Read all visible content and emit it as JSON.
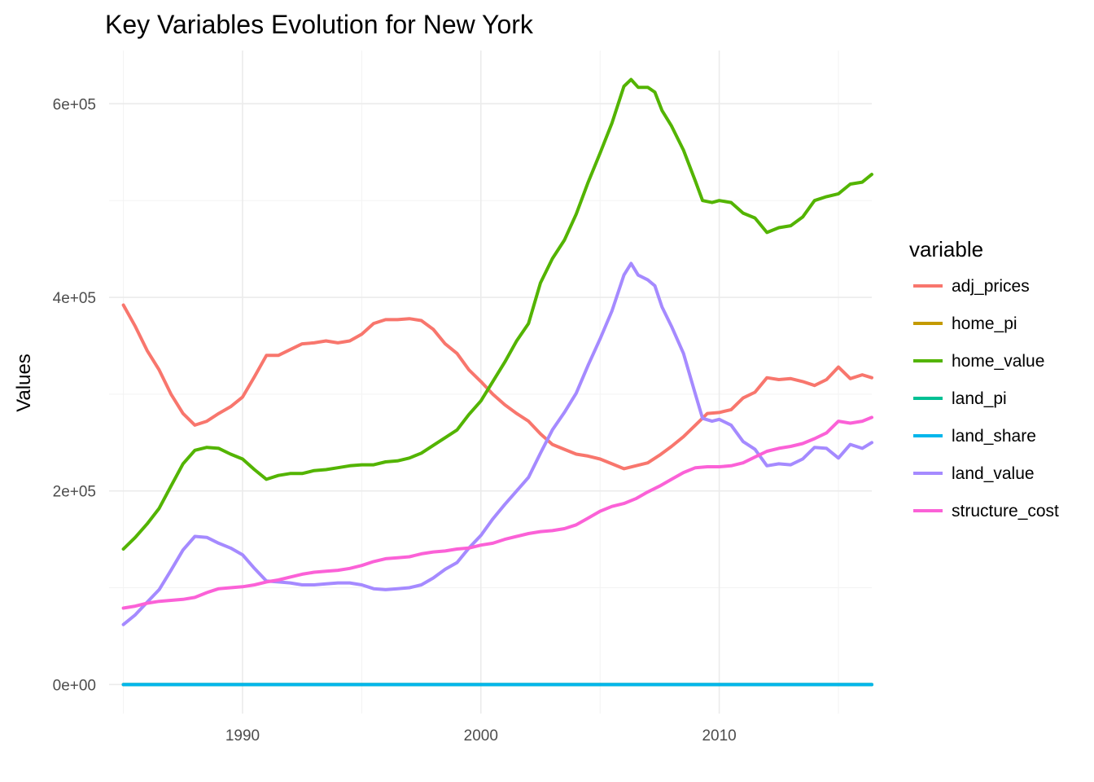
{
  "chart_data": {
    "type": "line",
    "title": "Key Variables Evolution for New York",
    "xlabel": "",
    "ylabel": "Values",
    "xlim": [
      1984.4,
      2016.4
    ],
    "ylim": [
      -30000,
      655000
    ],
    "x_ticks": [
      1990,
      2000,
      2010
    ],
    "x_tick_labels": [
      "1990",
      "2000",
      "2010"
    ],
    "y_ticks": [
      0,
      200000,
      400000,
      600000
    ],
    "y_tick_labels": [
      "0e+00",
      "2e+05",
      "4e+05",
      "6e+05"
    ],
    "grid": true,
    "legend": {
      "title": "variable",
      "position": "right"
    },
    "series": [
      {
        "name": "adj_prices",
        "color": "#F8766D",
        "points": [
          [
            1985,
            392000
          ],
          [
            1985.5,
            370000
          ],
          [
            1986,
            345000
          ],
          [
            1986.5,
            325000
          ],
          [
            1987,
            300000
          ],
          [
            1987.5,
            280000
          ],
          [
            1988,
            268000
          ],
          [
            1988.5,
            272000
          ],
          [
            1989,
            280000
          ],
          [
            1989.5,
            287000
          ],
          [
            1990,
            297000
          ],
          [
            1990.5,
            318000
          ],
          [
            1991,
            340000
          ],
          [
            1991.5,
            340000
          ],
          [
            1992,
            346000
          ],
          [
            1992.5,
            352000
          ],
          [
            1993,
            353000
          ],
          [
            1993.5,
            355000
          ],
          [
            1994,
            353000
          ],
          [
            1994.5,
            355000
          ],
          [
            1995,
            362000
          ],
          [
            1995.5,
            373000
          ],
          [
            1996,
            377000
          ],
          [
            1996.5,
            377000
          ],
          [
            1997,
            378000
          ],
          [
            1997.5,
            376000
          ],
          [
            1998,
            367000
          ],
          [
            1998.5,
            352000
          ],
          [
            1999,
            342000
          ],
          [
            1999.5,
            325000
          ],
          [
            2000,
            313000
          ],
          [
            2000.5,
            300000
          ],
          [
            2001,
            289000
          ],
          [
            2001.5,
            280000
          ],
          [
            2002,
            272000
          ],
          [
            2002.5,
            259000
          ],
          [
            2003,
            248000
          ],
          [
            2003.5,
            243000
          ],
          [
            2004,
            238000
          ],
          [
            2004.5,
            236000
          ],
          [
            2005,
            233000
          ],
          [
            2005.5,
            228000
          ],
          [
            2006,
            223000
          ],
          [
            2006.5,
            226000
          ],
          [
            2007,
            229000
          ],
          [
            2007.5,
            237000
          ],
          [
            2008,
            246000
          ],
          [
            2008.5,
            256000
          ],
          [
            2009,
            268000
          ],
          [
            2009.5,
            280000
          ],
          [
            2010,
            281000
          ],
          [
            2010.5,
            284000
          ],
          [
            2011,
            296000
          ],
          [
            2011.5,
            302000
          ],
          [
            2012,
            317000
          ],
          [
            2012.5,
            315000
          ],
          [
            2013,
            316000
          ],
          [
            2013.5,
            313000
          ],
          [
            2014,
            309000
          ],
          [
            2014.5,
            315000
          ],
          [
            2015,
            328000
          ],
          [
            2015.5,
            316000
          ],
          [
            2016,
            320000
          ],
          [
            2016.4,
            317000
          ]
        ]
      },
      {
        "name": "home_pi",
        "color": "#C49A00",
        "points": [
          [
            1985,
            0
          ],
          [
            2016.4,
            0
          ]
        ]
      },
      {
        "name": "home_value",
        "color": "#53B400",
        "points": [
          [
            1985,
            140000
          ],
          [
            1985.5,
            152000
          ],
          [
            1986,
            166000
          ],
          [
            1986.5,
            182000
          ],
          [
            1987,
            205000
          ],
          [
            1987.5,
            228000
          ],
          [
            1988,
            242000
          ],
          [
            1988.5,
            245000
          ],
          [
            1989,
            244000
          ],
          [
            1989.5,
            238000
          ],
          [
            1990,
            233000
          ],
          [
            1990.5,
            222000
          ],
          [
            1991,
            212000
          ],
          [
            1991.5,
            216000
          ],
          [
            1992,
            218000
          ],
          [
            1992.5,
            218000
          ],
          [
            1993,
            221000
          ],
          [
            1993.5,
            222000
          ],
          [
            1994,
            224000
          ],
          [
            1994.5,
            226000
          ],
          [
            1995,
            227000
          ],
          [
            1995.5,
            227000
          ],
          [
            1996,
            230000
          ],
          [
            1996.5,
            231000
          ],
          [
            1997,
            234000
          ],
          [
            1997.5,
            239000
          ],
          [
            1998,
            247000
          ],
          [
            1998.5,
            255000
          ],
          [
            1999,
            263000
          ],
          [
            1999.5,
            279000
          ],
          [
            2000,
            293000
          ],
          [
            2000.5,
            313000
          ],
          [
            2001,
            333000
          ],
          [
            2001.5,
            355000
          ],
          [
            2002,
            373000
          ],
          [
            2002.5,
            415000
          ],
          [
            2003,
            440000
          ],
          [
            2003.5,
            459000
          ],
          [
            2004,
            486000
          ],
          [
            2004.5,
            519000
          ],
          [
            2005,
            549000
          ],
          [
            2005.5,
            580000
          ],
          [
            2006,
            618000
          ],
          [
            2006.3,
            625000
          ],
          [
            2006.6,
            617000
          ],
          [
            2007,
            617000
          ],
          [
            2007.3,
            612000
          ],
          [
            2007.6,
            593000
          ],
          [
            2008,
            577000
          ],
          [
            2008.5,
            552000
          ],
          [
            2009,
            520000
          ],
          [
            2009.3,
            500000
          ],
          [
            2009.7,
            498000
          ],
          [
            2010,
            500000
          ],
          [
            2010.5,
            498000
          ],
          [
            2011,
            487000
          ],
          [
            2011.5,
            482000
          ],
          [
            2012,
            467000
          ],
          [
            2012.5,
            472000
          ],
          [
            2013,
            474000
          ],
          [
            2013.5,
            483000
          ],
          [
            2014,
            500000
          ],
          [
            2014.5,
            504000
          ],
          [
            2015,
            507000
          ],
          [
            2015.5,
            517000
          ],
          [
            2016,
            519000
          ],
          [
            2016.4,
            527000
          ]
        ]
      },
      {
        "name": "land_pi",
        "color": "#00C094",
        "points": [
          [
            1985,
            0
          ],
          [
            2016.4,
            0
          ]
        ]
      },
      {
        "name": "land_share",
        "color": "#00B6EB",
        "points": [
          [
            1985,
            0
          ],
          [
            2016.4,
            0
          ]
        ]
      },
      {
        "name": "land_value",
        "color": "#A58AFF",
        "points": [
          [
            1985,
            62000
          ],
          [
            1985.5,
            72000
          ],
          [
            1986,
            85000
          ],
          [
            1986.5,
            98000
          ],
          [
            1987,
            118000
          ],
          [
            1987.5,
            139000
          ],
          [
            1988,
            153000
          ],
          [
            1988.5,
            152000
          ],
          [
            1989,
            146000
          ],
          [
            1989.5,
            141000
          ],
          [
            1990,
            134000
          ],
          [
            1990.5,
            120000
          ],
          [
            1991,
            107000
          ],
          [
            1991.5,
            106000
          ],
          [
            1992,
            105000
          ],
          [
            1992.5,
            103000
          ],
          [
            1993,
            103000
          ],
          [
            1993.5,
            104000
          ],
          [
            1994,
            105000
          ],
          [
            1994.5,
            105000
          ],
          [
            1995,
            103000
          ],
          [
            1995.5,
            99000
          ],
          [
            1996,
            98000
          ],
          [
            1996.5,
            99000
          ],
          [
            1997,
            100000
          ],
          [
            1997.5,
            103000
          ],
          [
            1998,
            110000
          ],
          [
            1998.5,
            119000
          ],
          [
            1999,
            126000
          ],
          [
            1999.5,
            141000
          ],
          [
            2000,
            154000
          ],
          [
            2000.5,
            171000
          ],
          [
            2001,
            186000
          ],
          [
            2001.5,
            200000
          ],
          [
            2002,
            214000
          ],
          [
            2002.5,
            239000
          ],
          [
            2003,
            263000
          ],
          [
            2003.5,
            281000
          ],
          [
            2004,
            301000
          ],
          [
            2004.5,
            330000
          ],
          [
            2005,
            357000
          ],
          [
            2005.5,
            386000
          ],
          [
            2006,
            423000
          ],
          [
            2006.3,
            435000
          ],
          [
            2006.6,
            423000
          ],
          [
            2007,
            418000
          ],
          [
            2007.3,
            412000
          ],
          [
            2007.6,
            390000
          ],
          [
            2008,
            370000
          ],
          [
            2008.5,
            342000
          ],
          [
            2009,
            300000
          ],
          [
            2009.3,
            275000
          ],
          [
            2009.7,
            272000
          ],
          [
            2010,
            274000
          ],
          [
            2010.5,
            268000
          ],
          [
            2011,
            251000
          ],
          [
            2011.5,
            243000
          ],
          [
            2012,
            226000
          ],
          [
            2012.5,
            228000
          ],
          [
            2013,
            227000
          ],
          [
            2013.5,
            233000
          ],
          [
            2014,
            245000
          ],
          [
            2014.5,
            244000
          ],
          [
            2015,
            234000
          ],
          [
            2015.5,
            248000
          ],
          [
            2016,
            244000
          ],
          [
            2016.4,
            250000
          ]
        ]
      },
      {
        "name": "structure_cost",
        "color": "#FB61D7",
        "points": [
          [
            1985,
            79000
          ],
          [
            1985.5,
            81000
          ],
          [
            1986,
            84000
          ],
          [
            1986.5,
            86000
          ],
          [
            1987,
            87000
          ],
          [
            1987.5,
            88000
          ],
          [
            1988,
            90000
          ],
          [
            1988.5,
            95000
          ],
          [
            1989,
            99000
          ],
          [
            1989.5,
            100000
          ],
          [
            1990,
            101000
          ],
          [
            1990.5,
            103000
          ],
          [
            1991,
            106000
          ],
          [
            1991.5,
            108000
          ],
          [
            1992,
            111000
          ],
          [
            1992.5,
            114000
          ],
          [
            1993,
            116000
          ],
          [
            1993.5,
            117000
          ],
          [
            1994,
            118000
          ],
          [
            1994.5,
            120000
          ],
          [
            1995,
            123000
          ],
          [
            1995.5,
            127000
          ],
          [
            1996,
            130000
          ],
          [
            1996.5,
            131000
          ],
          [
            1997,
            132000
          ],
          [
            1997.5,
            135000
          ],
          [
            1998,
            137000
          ],
          [
            1998.5,
            138000
          ],
          [
            1999,
            140000
          ],
          [
            1999.5,
            141000
          ],
          [
            2000,
            144000
          ],
          [
            2000.5,
            146000
          ],
          [
            2001,
            150000
          ],
          [
            2001.5,
            153000
          ],
          [
            2002,
            156000
          ],
          [
            2002.5,
            158000
          ],
          [
            2003,
            159000
          ],
          [
            2003.5,
            161000
          ],
          [
            2004,
            165000
          ],
          [
            2004.5,
            172000
          ],
          [
            2005,
            179000
          ],
          [
            2005.5,
            184000
          ],
          [
            2006,
            187000
          ],
          [
            2006.5,
            192000
          ],
          [
            2007,
            199000
          ],
          [
            2007.5,
            205000
          ],
          [
            2008,
            212000
          ],
          [
            2008.5,
            219000
          ],
          [
            2009,
            224000
          ],
          [
            2009.5,
            225000
          ],
          [
            2010,
            225000
          ],
          [
            2010.5,
            226000
          ],
          [
            2011,
            229000
          ],
          [
            2011.5,
            235000
          ],
          [
            2012,
            241000
          ],
          [
            2012.5,
            244000
          ],
          [
            2013,
            246000
          ],
          [
            2013.5,
            249000
          ],
          [
            2014,
            254000
          ],
          [
            2014.5,
            260000
          ],
          [
            2015,
            272000
          ],
          [
            2015.5,
            270000
          ],
          [
            2016,
            272000
          ],
          [
            2016.4,
            276000
          ]
        ]
      }
    ]
  }
}
